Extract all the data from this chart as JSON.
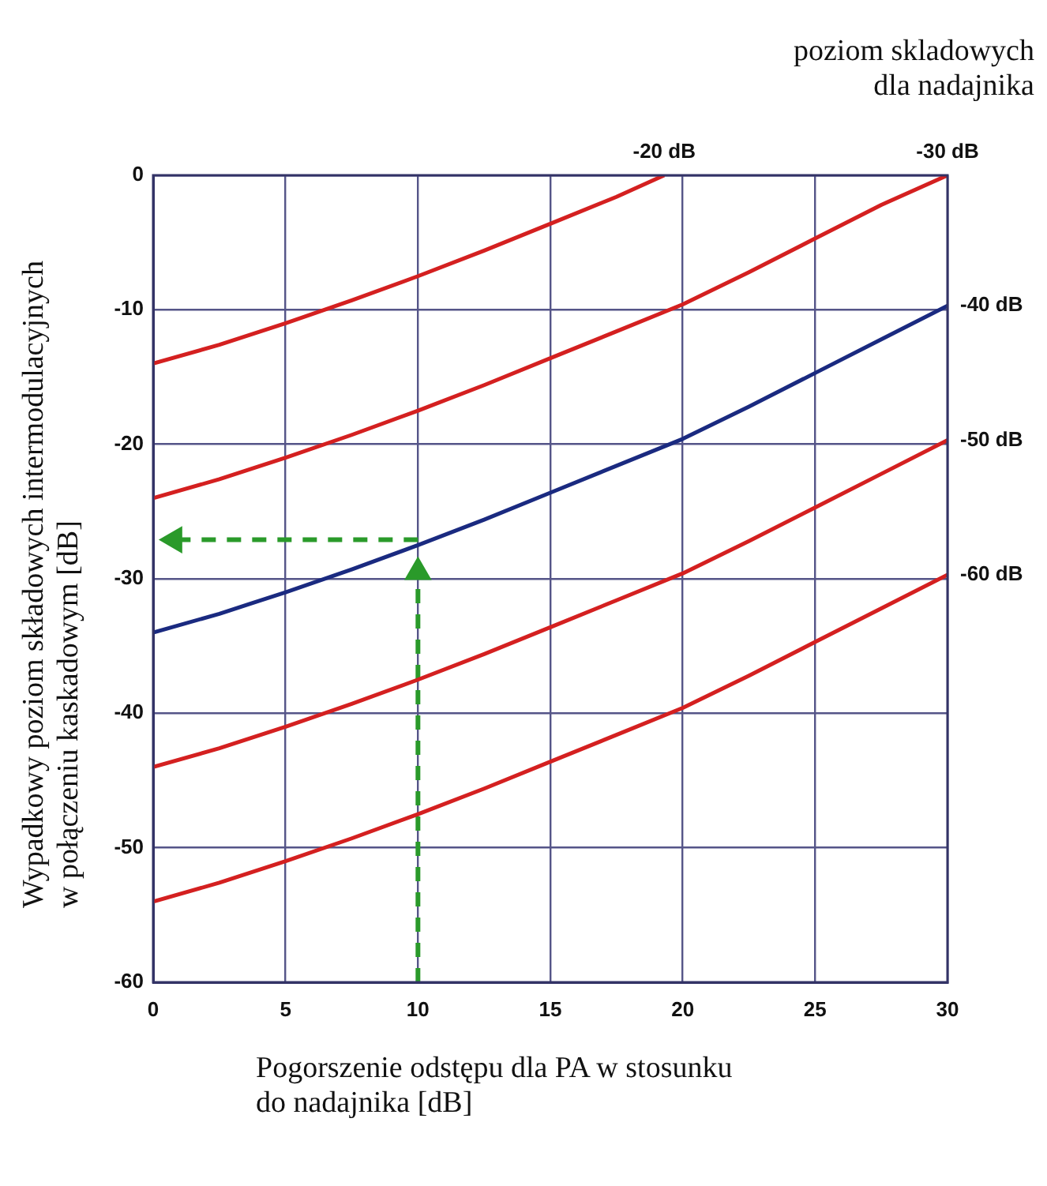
{
  "chart_data": {
    "type": "line",
    "xlabel": "Pogorszenie odstępu dla PA w stosunku\ndo nadajnika [dB]",
    "ylabel": "Wypadkowy poziom składowych intermodulacyjnych\nw połączeniu kaskadowym [dB]",
    "legend_title": "poziom skladowych\ndla nadajnika",
    "x": [
      0,
      2.5,
      5,
      7.5,
      10,
      12.5,
      15,
      17.5,
      20,
      22.5,
      25,
      27.5,
      30
    ],
    "xlim": [
      0,
      30
    ],
    "xticks": [
      0,
      5,
      10,
      15,
      20,
      25,
      30
    ],
    "ylim": [
      -60,
      0
    ],
    "yticks": [
      -60,
      -50,
      -40,
      -30,
      -20,
      -10,
      0
    ],
    "grid": true,
    "line_style": "solid",
    "series": [
      {
        "name": "-20 dB",
        "color": "#d42020",
        "x": [
          0,
          2.5,
          5,
          7.5,
          10,
          12.5,
          15,
          17.5,
          19.3
        ],
        "values": [
          -14,
          -12.6,
          -11,
          -9.3,
          -7.5,
          -5.6,
          -3.6,
          -1.6,
          0
        ]
      },
      {
        "name": "-30 dB",
        "color": "#d42020",
        "values": [
          -24,
          -22.6,
          -21,
          -19.3,
          -17.5,
          -15.6,
          -13.6,
          -11.6,
          -9.6,
          -7.2,
          -4.7,
          -2.2,
          0
        ]
      },
      {
        "name": "-40 dB",
        "color": "#1a2a80",
        "values": [
          -34,
          -32.6,
          -31,
          -29.3,
          -27.5,
          -25.6,
          -23.6,
          -21.6,
          -19.6,
          -17.2,
          -14.7,
          -12.2,
          -9.7
        ]
      },
      {
        "name": "-50 dB",
        "color": "#d42020",
        "values": [
          -44,
          -42.6,
          -41,
          -39.3,
          -37.5,
          -35.6,
          -33.6,
          -31.6,
          -29.6,
          -27.2,
          -24.7,
          -22.2,
          -19.7
        ]
      },
      {
        "name": "-60 dB",
        "color": "#d42020",
        "values": [
          -54,
          -52.6,
          -51,
          -49.3,
          -47.5,
          -45.6,
          -43.6,
          -41.6,
          -39.6,
          -37.2,
          -34.7,
          -32.2,
          -29.7
        ]
      },
      {
        "color": "#2a9a2a",
        "line_style": "dashed",
        "marker": "triangle",
        "x": [
          10,
          10
        ],
        "values": [
          -60,
          -29.5
        ]
      },
      {
        "color": "#2a9a2a",
        "line_style": "dashed",
        "marker": "triangle",
        "x": [
          10,
          0.8
        ],
        "values": [
          -27.1,
          -27.1
        ]
      }
    ]
  }
}
